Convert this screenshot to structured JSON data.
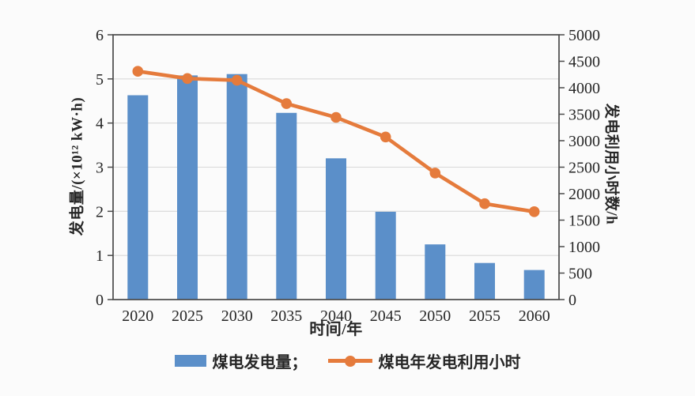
{
  "chart_data": {
    "type": "bar+line",
    "categories": [
      "2020",
      "2025",
      "2030",
      "2035",
      "2040",
      "2045",
      "2050",
      "2055",
      "2060"
    ],
    "series": [
      {
        "name": "煤电发电量",
        "type": "bar",
        "axis": "left",
        "unit": "×10¹² kW·h",
        "values": [
          4.63,
          5.08,
          5.11,
          4.23,
          3.2,
          1.99,
          1.25,
          0.83,
          0.67
        ]
      },
      {
        "name": "煤电年发电利用小时",
        "type": "line",
        "axis": "right",
        "unit": "h",
        "values": [
          4310,
          4175,
          4140,
          3700,
          3440,
          3070,
          2390,
          1810,
          1660
        ]
      }
    ],
    "title": "",
    "xlabel": "时间/年",
    "ylabel_left": "发电量/(×10¹² kW·h)",
    "ylabel_right": "发电利用小时数/h",
    "left_axis": {
      "min": 0,
      "max": 6,
      "step": 1
    },
    "right_axis": {
      "min": 0,
      "max": 5000,
      "step": 500
    },
    "grid": "horizontal gridlines at left-axis values 1-5",
    "legend_position": "bottom"
  },
  "labels": {
    "xlabel": "时间/年",
    "ylabel_left": "发电量/(×10¹² kW·h)",
    "ylabel_right": "发电利用小时数/h"
  },
  "legend": {
    "bar_label": "煤电发电量；",
    "line_label": "煤电年发电利用小时"
  },
  "colors": {
    "bar": "#5b8fc9",
    "line": "#e57b3c",
    "axis": "#4a4a4a",
    "grid": "#d9d9d9",
    "text": "#262626",
    "background": "#fbfbfb"
  }
}
